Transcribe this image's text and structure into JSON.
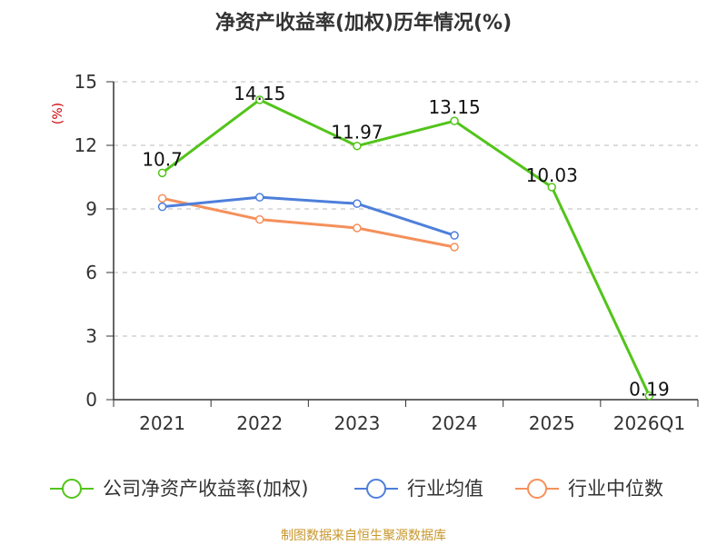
{
  "chart_data": {
    "type": "line",
    "title": "净资产收益率(加权)历年情况(%)",
    "ylabel": "(%)",
    "xlabel": "",
    "ylim": [
      0,
      15
    ],
    "yticks": [
      0,
      3,
      6,
      9,
      12,
      15
    ],
    "grid": true,
    "legend_position": "bottom",
    "categories": [
      "2021",
      "2022",
      "2023",
      "2024",
      "2025",
      "2026Q1"
    ],
    "series": [
      {
        "name": "公司净资产收益率(加权)",
        "color": "#52c41a",
        "values": [
          10.7,
          14.15,
          11.97,
          13.15,
          10.03,
          0.19
        ],
        "labels": [
          "10.7",
          "14.15",
          "11.97",
          "13.15",
          "10.03",
          "0.19"
        ]
      },
      {
        "name": "行业均值",
        "color": "#4e7fdb",
        "values": [
          9.1,
          9.55,
          9.25,
          7.75,
          null,
          null
        ]
      },
      {
        "name": "行业中位数",
        "color": "#f5905a",
        "values": [
          9.5,
          8.5,
          8.1,
          7.2,
          null,
          null
        ]
      }
    ],
    "source_text": "制图数据来自恒生聚源数据库",
    "source_color": "#c8962a",
    "ylabel_color": "#cc0000"
  }
}
